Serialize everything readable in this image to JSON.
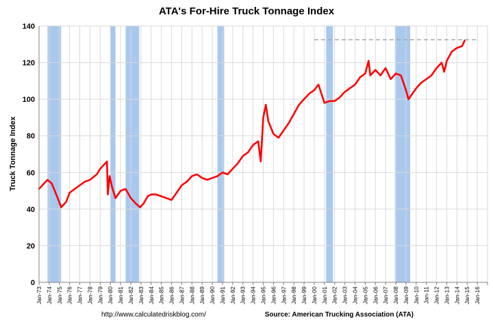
{
  "chart_data": {
    "type": "line",
    "title": "ATA's For-Hire Truck Tonnage Index",
    "ylabel": "Truck Tonnage Index",
    "xlabel": "",
    "ylim": [
      0,
      140
    ],
    "yticks": [
      0,
      20,
      40,
      60,
      80,
      100,
      120,
      140
    ],
    "x_tick_labels": [
      "Jan-73",
      "Jan-74",
      "Jan-75",
      "Jan-76",
      "Jan-77",
      "Jan-78",
      "Jan-79",
      "Jan-80",
      "Jan-81",
      "Jan-82",
      "Jan-83",
      "Jan-84",
      "Jan-85",
      "Jan-86",
      "Jan-87",
      "Jan-88",
      "Jan-89",
      "Jan-90",
      "Jan-91",
      "Jan-92",
      "Jan-93",
      "Jan-94",
      "Jan-95",
      "Jan-96",
      "Jan-97",
      "Jan-98",
      "Jan-99",
      "Jan-00",
      "Jan-01",
      "Jan-02",
      "Jan-03",
      "Jan-04",
      "Jan-05",
      "Jan-06",
      "Jan-07",
      "Jan-08",
      "Jan-09",
      "Jan-10",
      "Jan-11",
      "Jan-12",
      "Jan-13",
      "Jan-14",
      "Jan-15",
      "Jan-16"
    ],
    "grid": true,
    "colors": {
      "series": "#ff0000",
      "recession": "#a9c8ee",
      "reference_line": "#a6a6a6",
      "grid": "#d9d9d9"
    },
    "recessions": [
      {
        "start": "Nov-73",
        "end": "Mar-75"
      },
      {
        "start": "Jan-80",
        "end": "Jul-80"
      },
      {
        "start": "Jul-81",
        "end": "Nov-82"
      },
      {
        "start": "Jul-90",
        "end": "Mar-91"
      },
      {
        "start": "Mar-01",
        "end": "Nov-01"
      },
      {
        "start": "Dec-07",
        "end": "Jun-09"
      }
    ],
    "reference_line": {
      "value": 132.5,
      "start": "Jan-00",
      "end": "Jan-16"
    },
    "series": [
      {
        "x": [
          "Jan-73",
          "Jul-73",
          "Nov-73",
          "Apr-74",
          "Nov-74",
          "Mar-75",
          "Sep-75",
          "Jan-76",
          "Jul-76",
          "Jan-77",
          "Jul-77",
          "Jan-78",
          "Sep-78",
          "Jan-79",
          "Jul-79",
          "Sep-79",
          "Oct-79",
          "Dec-79",
          "Mar-80",
          "Jul-80",
          "Jan-81",
          "Jul-81",
          "Jan-82",
          "Jul-82",
          "Dec-82",
          "Apr-83",
          "Sep-83",
          "Jan-84",
          "Jul-84",
          "Jan-85",
          "Jul-85",
          "Jan-86",
          "Jul-86",
          "Jan-87",
          "Jul-87",
          "Jan-88",
          "Jul-88",
          "Jan-89",
          "Jul-89",
          "Jan-90",
          "Jul-90",
          "Jan-91",
          "Jul-91",
          "Jan-92",
          "Jul-92",
          "Jan-93",
          "Jul-93",
          "Jan-94",
          "Jul-94",
          "Oct-94",
          "Jan-95",
          "Apr-95",
          "Jul-95",
          "Jan-96",
          "Jul-96",
          "Jan-97",
          "Jul-97",
          "Jan-98",
          "Jul-98",
          "Jan-99",
          "Jul-99",
          "Jan-00",
          "Jun-00",
          "Jan-01",
          "Jul-01",
          "Jan-02",
          "Jul-02",
          "Jan-03",
          "Jul-03",
          "Jan-04",
          "Jul-04",
          "Jan-05",
          "May-05",
          "Jul-05",
          "Jan-06",
          "Jul-06",
          "Jan-07",
          "Jul-07",
          "Jan-08",
          "Jul-08",
          "Jan-09",
          "Apr-09",
          "Jul-09",
          "Jan-10",
          "Jul-10",
          "Jan-11",
          "Jul-11",
          "Jan-12",
          "Jul-12",
          "Oct-12",
          "Jan-13",
          "Jul-13",
          "Jan-14",
          "Jul-14",
          "Oct-14"
        ],
        "values": [
          51,
          54,
          56,
          54,
          46,
          41,
          44,
          49,
          51,
          53,
          55,
          56,
          59,
          62,
          65,
          66,
          48,
          58,
          52,
          46,
          50,
          51,
          46,
          43,
          41,
          43,
          47,
          48,
          48,
          47,
          46,
          45,
          49,
          53,
          55,
          58,
          59,
          57,
          56,
          57,
          58,
          60,
          59,
          62,
          65,
          69,
          71,
          75,
          77,
          66,
          90,
          97,
          88,
          81,
          79,
          83,
          87,
          92,
          97,
          100,
          103,
          105,
          108,
          98,
          99,
          99,
          101,
          104,
          106,
          108,
          112,
          114,
          121,
          113,
          116,
          113,
          117,
          111,
          114,
          113,
          105,
          100,
          102,
          106,
          109,
          111,
          113,
          117,
          120,
          115,
          121,
          126,
          128,
          129,
          132
        ]
      }
    ],
    "source_text": "Source: American Trucking Association (ATA)",
    "credit_text": "http://www.calculatedriskblog.com/"
  }
}
